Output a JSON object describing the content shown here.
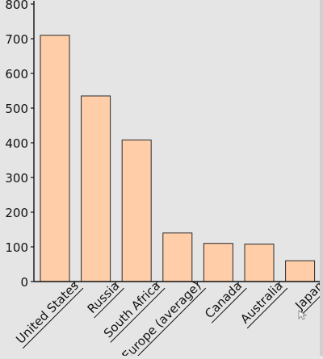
{
  "chart_data": {
    "type": "bar",
    "categories": [
      "United States",
      "Russia",
      "South Africa",
      "Europe (average)",
      "Canada",
      "Australia",
      "Japan"
    ],
    "values": [
      710,
      535,
      408,
      140,
      110,
      108,
      60
    ],
    "ylim": [
      0,
      800
    ],
    "yticks": [
      0,
      100,
      200,
      300,
      400,
      500,
      600,
      700,
      800
    ],
    "grid": false,
    "colors": {
      "bar_fill": "#ffcda8",
      "bar_stroke": "#2a2a2a",
      "axis": "#111111",
      "background": "#e5e5e5"
    }
  }
}
